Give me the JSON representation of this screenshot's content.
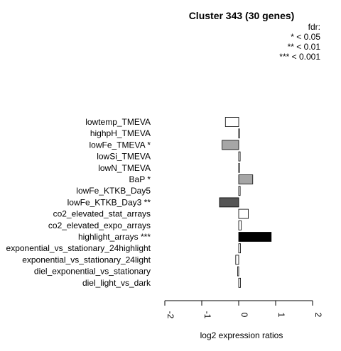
{
  "chart_data": {
    "type": "bar",
    "orientation": "horizontal",
    "title": "Cluster 343 (30 genes)",
    "xlabel": "log2 expression ratios",
    "ylabel": "",
    "xlim": [
      -2,
      2
    ],
    "xticks": [
      "-2",
      "-1",
      "0",
      "1",
      "2"
    ],
    "xtick_values": [
      -2,
      -1,
      0,
      1,
      2
    ],
    "legend": {
      "title": "fdr:",
      "entries": [
        "* < 0.05",
        "** < 0.01",
        "*** < 0.001"
      ],
      "placement": "top-right"
    },
    "categories": [
      "lowtemp_TMEVA",
      "highpH_TMEVA",
      "lowFe_TMEVA *",
      "lowSi_TMEVA",
      "lowN_TMEVA",
      "BaP *",
      "lowFe_KTKB_Day5",
      "lowFe_KTKB_Day3 **",
      "co2_elevated_stat_arrays",
      "co2_elevated_expo_arrays",
      "highlight_arrays ***",
      "exponential_vs_stationary_24highlight",
      "exponential_vs_stationary_24light",
      "diel_exponential_vs_stationary",
      "diel_light_vs_dark"
    ],
    "values": [
      -0.36,
      0.02,
      -0.45,
      0.04,
      0.01,
      0.38,
      0.04,
      -0.52,
      0.26,
      0.07,
      0.88,
      0.05,
      -0.08,
      -0.03,
      0.05
    ],
    "colors": [
      "#ffffff",
      "#ffffff",
      "#a6a6a6",
      "#ffffff",
      "#ffffff",
      "#a6a6a6",
      "#ffffff",
      "#555555",
      "#ffffff",
      "#ffffff",
      "#000000",
      "#ffffff",
      "#ffffff",
      "#ffffff",
      "#ffffff"
    ]
  }
}
